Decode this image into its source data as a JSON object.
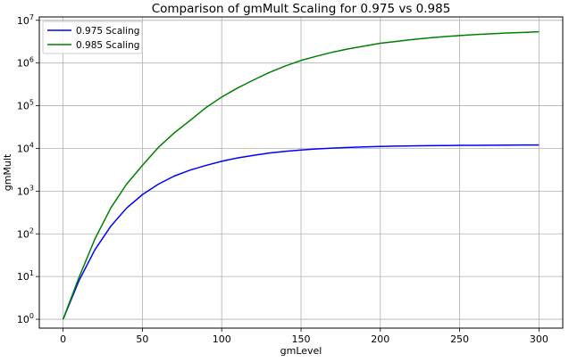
{
  "chart_data": {
    "type": "line",
    "title": "Comparison of gmMult Scaling for 0.975 vs 0.985",
    "xlabel": "gmLevel",
    "ylabel": "gmMult",
    "xlim": [
      -15,
      315
    ],
    "ylim": [
      0.62,
      12000000
    ],
    "yscale": "log",
    "grid": true,
    "legend": "top-left",
    "x_ticks": [
      0,
      50,
      100,
      150,
      200,
      250,
      300
    ],
    "x_tick_labels": [
      "0",
      "50",
      "100",
      "150",
      "200",
      "250",
      "300"
    ],
    "y_ticks": [
      1,
      10,
      100,
      1000,
      10000,
      100000,
      1000000,
      10000000
    ],
    "y_tick_labels": [
      {
        "base": "10",
        "exp": "0"
      },
      {
        "base": "10",
        "exp": "1"
      },
      {
        "base": "10",
        "exp": "2"
      },
      {
        "base": "10",
        "exp": "3"
      },
      {
        "base": "10",
        "exp": "4"
      },
      {
        "base": "10",
        "exp": "5"
      },
      {
        "base": "10",
        "exp": "6"
      },
      {
        "base": "10",
        "exp": "7"
      }
    ],
    "series": [
      {
        "name": "0.975 Scaling",
        "color": "#0000ff",
        "x": [
          0,
          10,
          20,
          30,
          40,
          50,
          60,
          70,
          80,
          90,
          100,
          110,
          120,
          130,
          140,
          150,
          160,
          170,
          180,
          190,
          200,
          210,
          220,
          230,
          240,
          250,
          260,
          270,
          280,
          290,
          300
        ],
        "y": [
          1,
          8.0,
          42,
          150,
          400,
          830,
          1450,
          2250,
          3100,
          4000,
          5000,
          6000,
          6900,
          7800,
          8550,
          9200,
          9750,
          10200,
          10550,
          10850,
          11100,
          11300,
          11450,
          11600,
          11700,
          11800,
          11850,
          11900,
          11950,
          12000,
          12000
        ]
      },
      {
        "name": "0.985 Scaling",
        "color": "#008000",
        "x": [
          0,
          10,
          20,
          30,
          40,
          50,
          60,
          70,
          80,
          90,
          100,
          110,
          120,
          130,
          140,
          150,
          160,
          170,
          180,
          190,
          200,
          210,
          220,
          230,
          240,
          250,
          260,
          270,
          280,
          290,
          300
        ],
        "y": [
          1,
          9.5,
          75,
          400,
          1450,
          4000,
          10500,
          23000,
          45000,
          90000,
          160000,
          260000,
          400000,
          600000,
          850000,
          1150000,
          1450000,
          1800000,
          2150000,
          2500000,
          2900000,
          3200000,
          3550000,
          3850000,
          4150000,
          4400000,
          4650000,
          4850000,
          5050000,
          5200000,
          5400000
        ]
      }
    ]
  }
}
